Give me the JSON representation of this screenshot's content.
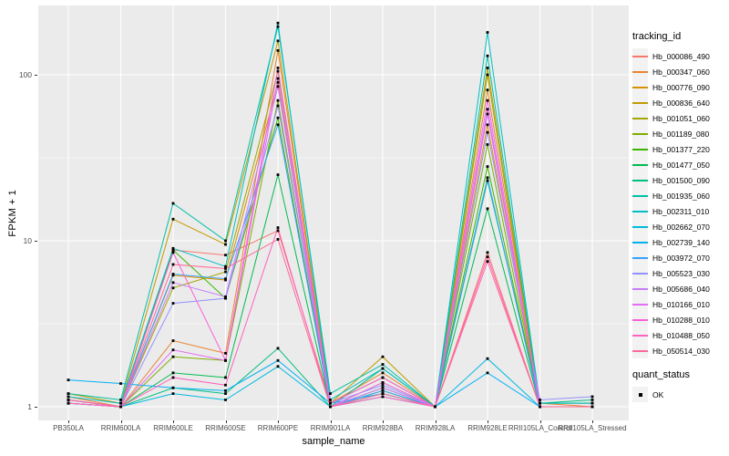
{
  "figure": {
    "background": "#FFFFFF",
    "panel_background": "#EBEBEB",
    "grid_color": "#FFFFFF",
    "tick_color": "#333333",
    "tick_label_color": "#4D4D4D",
    "axis_title_color": "#000000",
    "point_color": "#000000",
    "legend_key_background": "#F2F2F2"
  },
  "chart_data": {
    "type": "line",
    "title": "",
    "x_axis_label": "sample_name",
    "y_axis_label": "FPKM + 1",
    "y_scale": "log10",
    "y_ticks": [
      1,
      10,
      100
    ],
    "y_tick_labels": [
      "1",
      "10",
      "100"
    ],
    "y_minor_ticks": [
      3.1623,
      31.623
    ],
    "ylim": [
      0.83,
      262
    ],
    "grid": true,
    "legend_position": "right",
    "legend_title": "tracking_id",
    "point_shape": "square",
    "categories": [
      "PB350LA",
      "RRIM600LA",
      "RRIM600LE",
      "RRIM600SE",
      "RRIM600PE",
      "RRIM901LA",
      "RRIM928BA",
      "RRIM928LA",
      "RRIM928LE",
      "RRII105LA_Control",
      "RRII105LA_Stressed"
    ],
    "series": [
      {
        "name": "Hb_000086_490",
        "color": "#F8766D",
        "values": [
          1.1,
          1.0,
          8.8,
          8.2,
          11.5,
          1.05,
          1.5,
          1.0,
          8.5,
          1.0,
          1.0
        ]
      },
      {
        "name": "Hb_000347_060",
        "color": "#EA8331",
        "values": [
          1.15,
          1.0,
          2.5,
          2.1,
          140,
          1.05,
          1.6,
          1.0,
          81,
          1.05,
          1.0
        ]
      },
      {
        "name": "Hb_000776_090",
        "color": "#D89000",
        "values": [
          1.1,
          1.0,
          6.2,
          5.8,
          90,
          1.0,
          1.4,
          1.0,
          50,
          1.0,
          1.0
        ]
      },
      {
        "name": "Hb_000836_640",
        "color": "#C09B00",
        "values": [
          1.2,
          1.05,
          13.5,
          9.5,
          160,
          1.05,
          2.0,
          1.0,
          110,
          1.05,
          1.05
        ]
      },
      {
        "name": "Hb_001051_060",
        "color": "#A3A500",
        "values": [
          1.1,
          1.0,
          5.2,
          6.5,
          105,
          1.05,
          1.5,
          1.0,
          100,
          1.0,
          1.0
        ]
      },
      {
        "name": "Hb_001189_080",
        "color": "#7CAE00",
        "values": [
          1.05,
          1.0,
          2.0,
          1.9,
          70,
          1.0,
          1.3,
          1.0,
          38,
          1.0,
          1.0
        ]
      },
      {
        "name": "Hb_001377_220",
        "color": "#39B600",
        "values": [
          1.1,
          1.0,
          8.8,
          4.5,
          55,
          1.0,
          1.25,
          1.0,
          28,
          1.0,
          1.0
        ]
      },
      {
        "name": "Hb_001477_050",
        "color": "#00BB4E",
        "values": [
          1.05,
          1.0,
          1.6,
          1.5,
          25,
          1.0,
          1.2,
          1.0,
          15.6,
          1.0,
          1.0
        ]
      },
      {
        "name": "Hb_001500_090",
        "color": "#00BF7D",
        "values": [
          1.05,
          1.0,
          1.3,
          1.2,
          2.25,
          1.0,
          1.7,
          1.0,
          23,
          1.05,
          1.1
        ]
      },
      {
        "name": "Hb_001935_060",
        "color": "#00C1A3",
        "values": [
          1.2,
          1.1,
          16.8,
          10.0,
          195,
          1.2,
          1.8,
          1.0,
          130,
          1.05,
          1.05
        ]
      },
      {
        "name": "Hb_002311_010",
        "color": "#00BFC4",
        "values": [
          1.15,
          1.05,
          9.0,
          7.0,
          205,
          1.1,
          1.7,
          1.0,
          180,
          1.05,
          1.05
        ]
      },
      {
        "name": "Hb_002662_070",
        "color": "#00BAE0",
        "values": [
          1.1,
          1.0,
          1.2,
          1.1,
          1.75,
          1.0,
          1.15,
          1.0,
          1.95,
          1.0,
          1.0
        ]
      },
      {
        "name": "Hb_002739_140",
        "color": "#00B0F6",
        "values": [
          1.45,
          1.38,
          1.3,
          1.25,
          1.9,
          1.05,
          1.2,
          1.0,
          1.6,
          1.0,
          1.0
        ]
      },
      {
        "name": "Hb_003972_070",
        "color": "#35A2FF",
        "values": [
          1.1,
          1.0,
          6.3,
          5.9,
          50,
          1.0,
          1.25,
          1.0,
          24,
          1.0,
          1.0
        ]
      },
      {
        "name": "Hb_005523_030",
        "color": "#9590FF",
        "values": [
          1.1,
          1.0,
          4.2,
          4.5,
          65,
          1.05,
          1.35,
          1.0,
          45,
          1.1,
          1.15
        ]
      },
      {
        "name": "Hb_005686_040",
        "color": "#C77CFF",
        "values": [
          1.1,
          1.0,
          5.6,
          4.6,
          85,
          1.0,
          1.3,
          1.0,
          58,
          1.0,
          1.0
        ]
      },
      {
        "name": "Hb_010166_010",
        "color": "#E76BF3",
        "values": [
          1.05,
          1.0,
          2.2,
          1.9,
          95,
          1.0,
          1.4,
          1.0,
          70,
          1.0,
          1.0
        ]
      },
      {
        "name": "Hb_010288_010",
        "color": "#FA62DB",
        "values": [
          1.1,
          1.0,
          8.5,
          1.9,
          110,
          1.05,
          1.5,
          1.0,
          62,
          1.0,
          1.0
        ]
      },
      {
        "name": "Hb_010488_050",
        "color": "#FF62BC",
        "values": [
          1.05,
          1.0,
          1.5,
          1.35,
          12,
          1.0,
          1.15,
          1.0,
          8.0,
          1.0,
          1.0
        ]
      },
      {
        "name": "Hb_050514_030",
        "color": "#FF6A98",
        "values": [
          1.1,
          1.0,
          7.2,
          6.8,
          10.2,
          1.0,
          1.2,
          1.0,
          7.5,
          1.0,
          1.0
        ]
      }
    ],
    "quant_legend": {
      "title": "quant_status",
      "items": [
        {
          "label": "OK",
          "shape": "square",
          "color": "#000000"
        }
      ]
    }
  }
}
